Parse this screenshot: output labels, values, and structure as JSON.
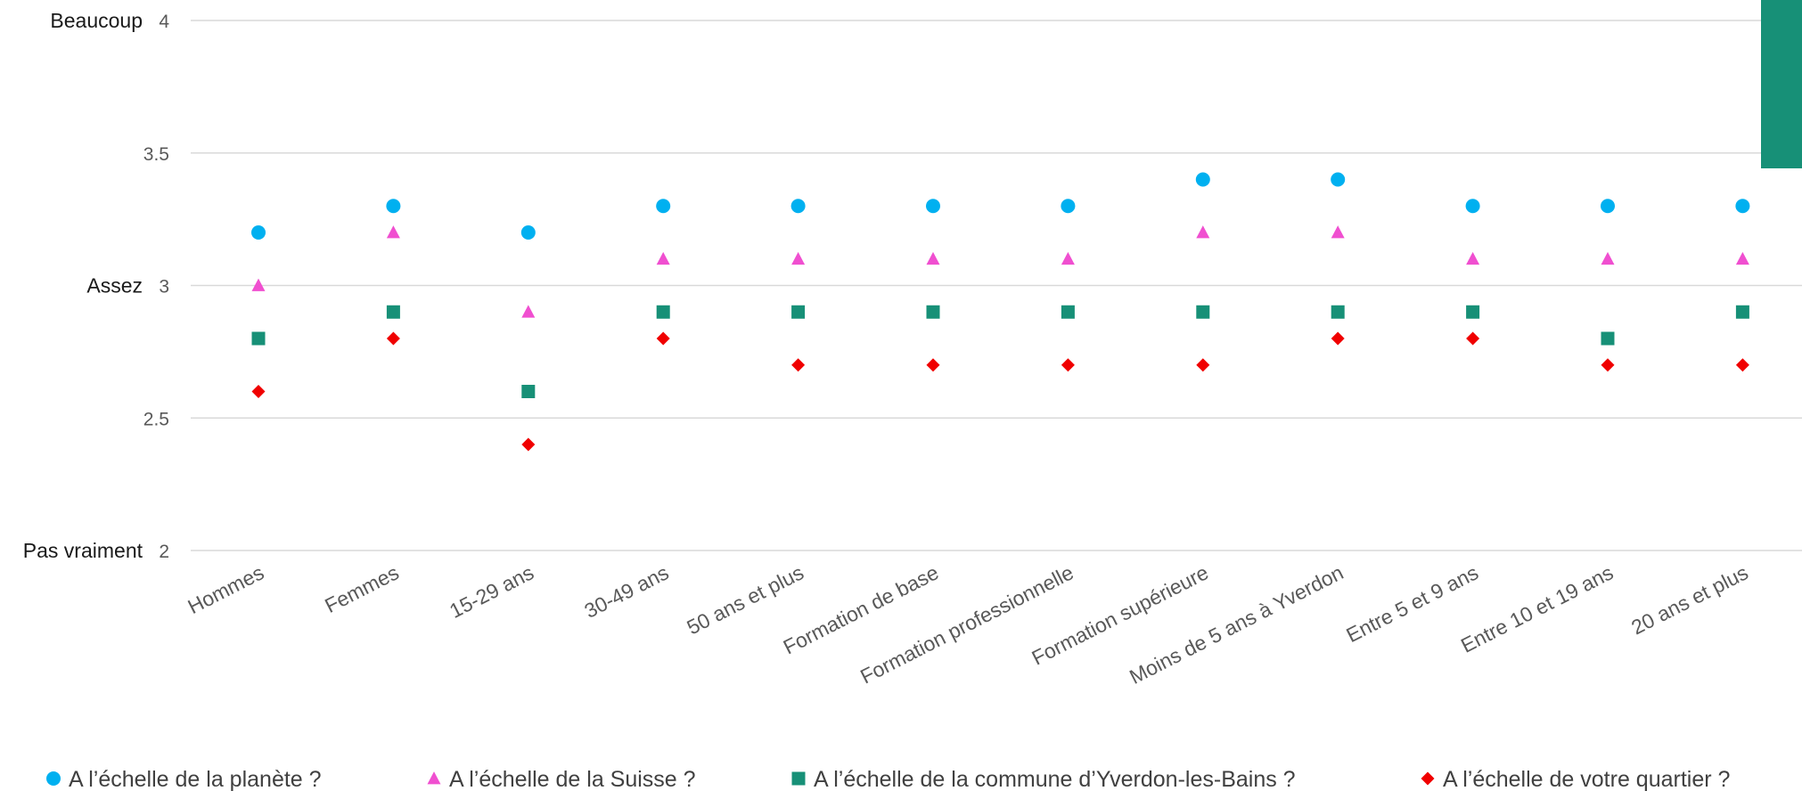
{
  "chart_data": {
    "type": "scatter",
    "categories": [
      "Hommes",
      "Femmes",
      "15-29 ans",
      "30-49 ans",
      "50 ans et plus",
      "Formation de base",
      "Formation professionnelle",
      "Formation supérieure",
      "Moins de 5 ans à Yverdon",
      "Entre 5 et 9 ans",
      "Entre 10 et 19 ans",
      "20 ans et plus"
    ],
    "ylim": [
      2,
      4
    ],
    "yticks": [
      2,
      2.5,
      3,
      3.5,
      4
    ],
    "level_labels": [
      {
        "value": 4,
        "label": "Beaucoup"
      },
      {
        "value": 3,
        "label": "Assez"
      },
      {
        "value": 2,
        "label": "Pas vraiment"
      }
    ],
    "grid": true,
    "legend_position": "bottom",
    "series": [
      {
        "name": "A l’échelle de la planète ?",
        "marker": "circle",
        "color": "#00B0F0",
        "values": [
          3.2,
          3.3,
          3.2,
          3.3,
          3.3,
          3.3,
          3.3,
          3.4,
          3.4,
          3.3,
          3.3,
          3.3
        ]
      },
      {
        "name": "A l’échelle de la Suisse ?",
        "marker": "triangle",
        "color": "#F04FD0",
        "values": [
          3.0,
          3.2,
          2.9,
          3.1,
          3.1,
          3.1,
          3.1,
          3.2,
          3.2,
          3.1,
          3.1,
          3.1
        ]
      },
      {
        "name": "A l’échelle de la commune d’Yverdon-les-Bains ?",
        "marker": "square",
        "color": "#179077",
        "values": [
          2.8,
          2.9,
          2.6,
          2.9,
          2.9,
          2.9,
          2.9,
          2.9,
          2.9,
          2.9,
          2.8,
          2.9
        ]
      },
      {
        "name": "A l’échelle de votre quartier ?",
        "marker": "diamond",
        "color": "#F00000",
        "values": [
          2.6,
          2.8,
          2.4,
          2.8,
          2.7,
          2.7,
          2.7,
          2.7,
          2.8,
          2.8,
          2.7,
          2.7
        ]
      }
    ],
    "accent_color": "#179077"
  }
}
